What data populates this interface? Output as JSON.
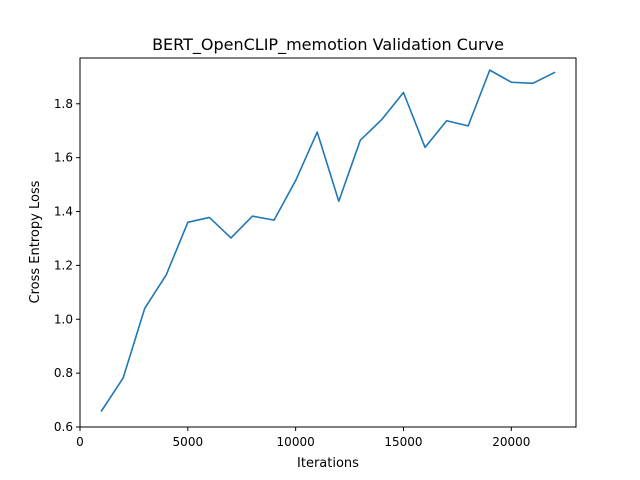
{
  "chart_data": {
    "type": "line",
    "title": "BERT_OpenCLIP_memotion Validation Curve",
    "xlabel": "Iterations",
    "ylabel": "Cross Entropy Loss",
    "xlim": [
      0,
      23000
    ],
    "ylim": [
      0.6,
      1.97
    ],
    "xticks": [
      0,
      5000,
      10000,
      15000,
      20000
    ],
    "xtick_labels": [
      "0",
      "5000",
      "10000",
      "15000",
      "20000"
    ],
    "yticks": [
      0.6,
      0.8,
      1.0,
      1.2,
      1.4,
      1.6,
      1.8
    ],
    "ytick_labels": [
      "0.6",
      "0.8",
      "1.0",
      "1.2",
      "1.4",
      "1.6",
      "1.8"
    ],
    "grid": false,
    "legend": null,
    "series": [
      {
        "color": "#1f77b4",
        "x": [
          1000,
          2000,
          3000,
          4000,
          5000,
          6000,
          7000,
          8000,
          9000,
          10000,
          11000,
          12000,
          13000,
          14000,
          15000,
          16000,
          17000,
          18000,
          19000,
          20000,
          21000,
          22000
        ],
        "y": [
          0.66,
          0.782,
          1.04,
          1.165,
          1.36,
          1.378,
          1.302,
          1.383,
          1.368,
          1.515,
          1.695,
          1.438,
          1.665,
          1.742,
          1.842,
          1.638,
          1.737,
          1.718,
          1.925,
          1.88,
          1.876,
          1.916
        ]
      }
    ]
  }
}
